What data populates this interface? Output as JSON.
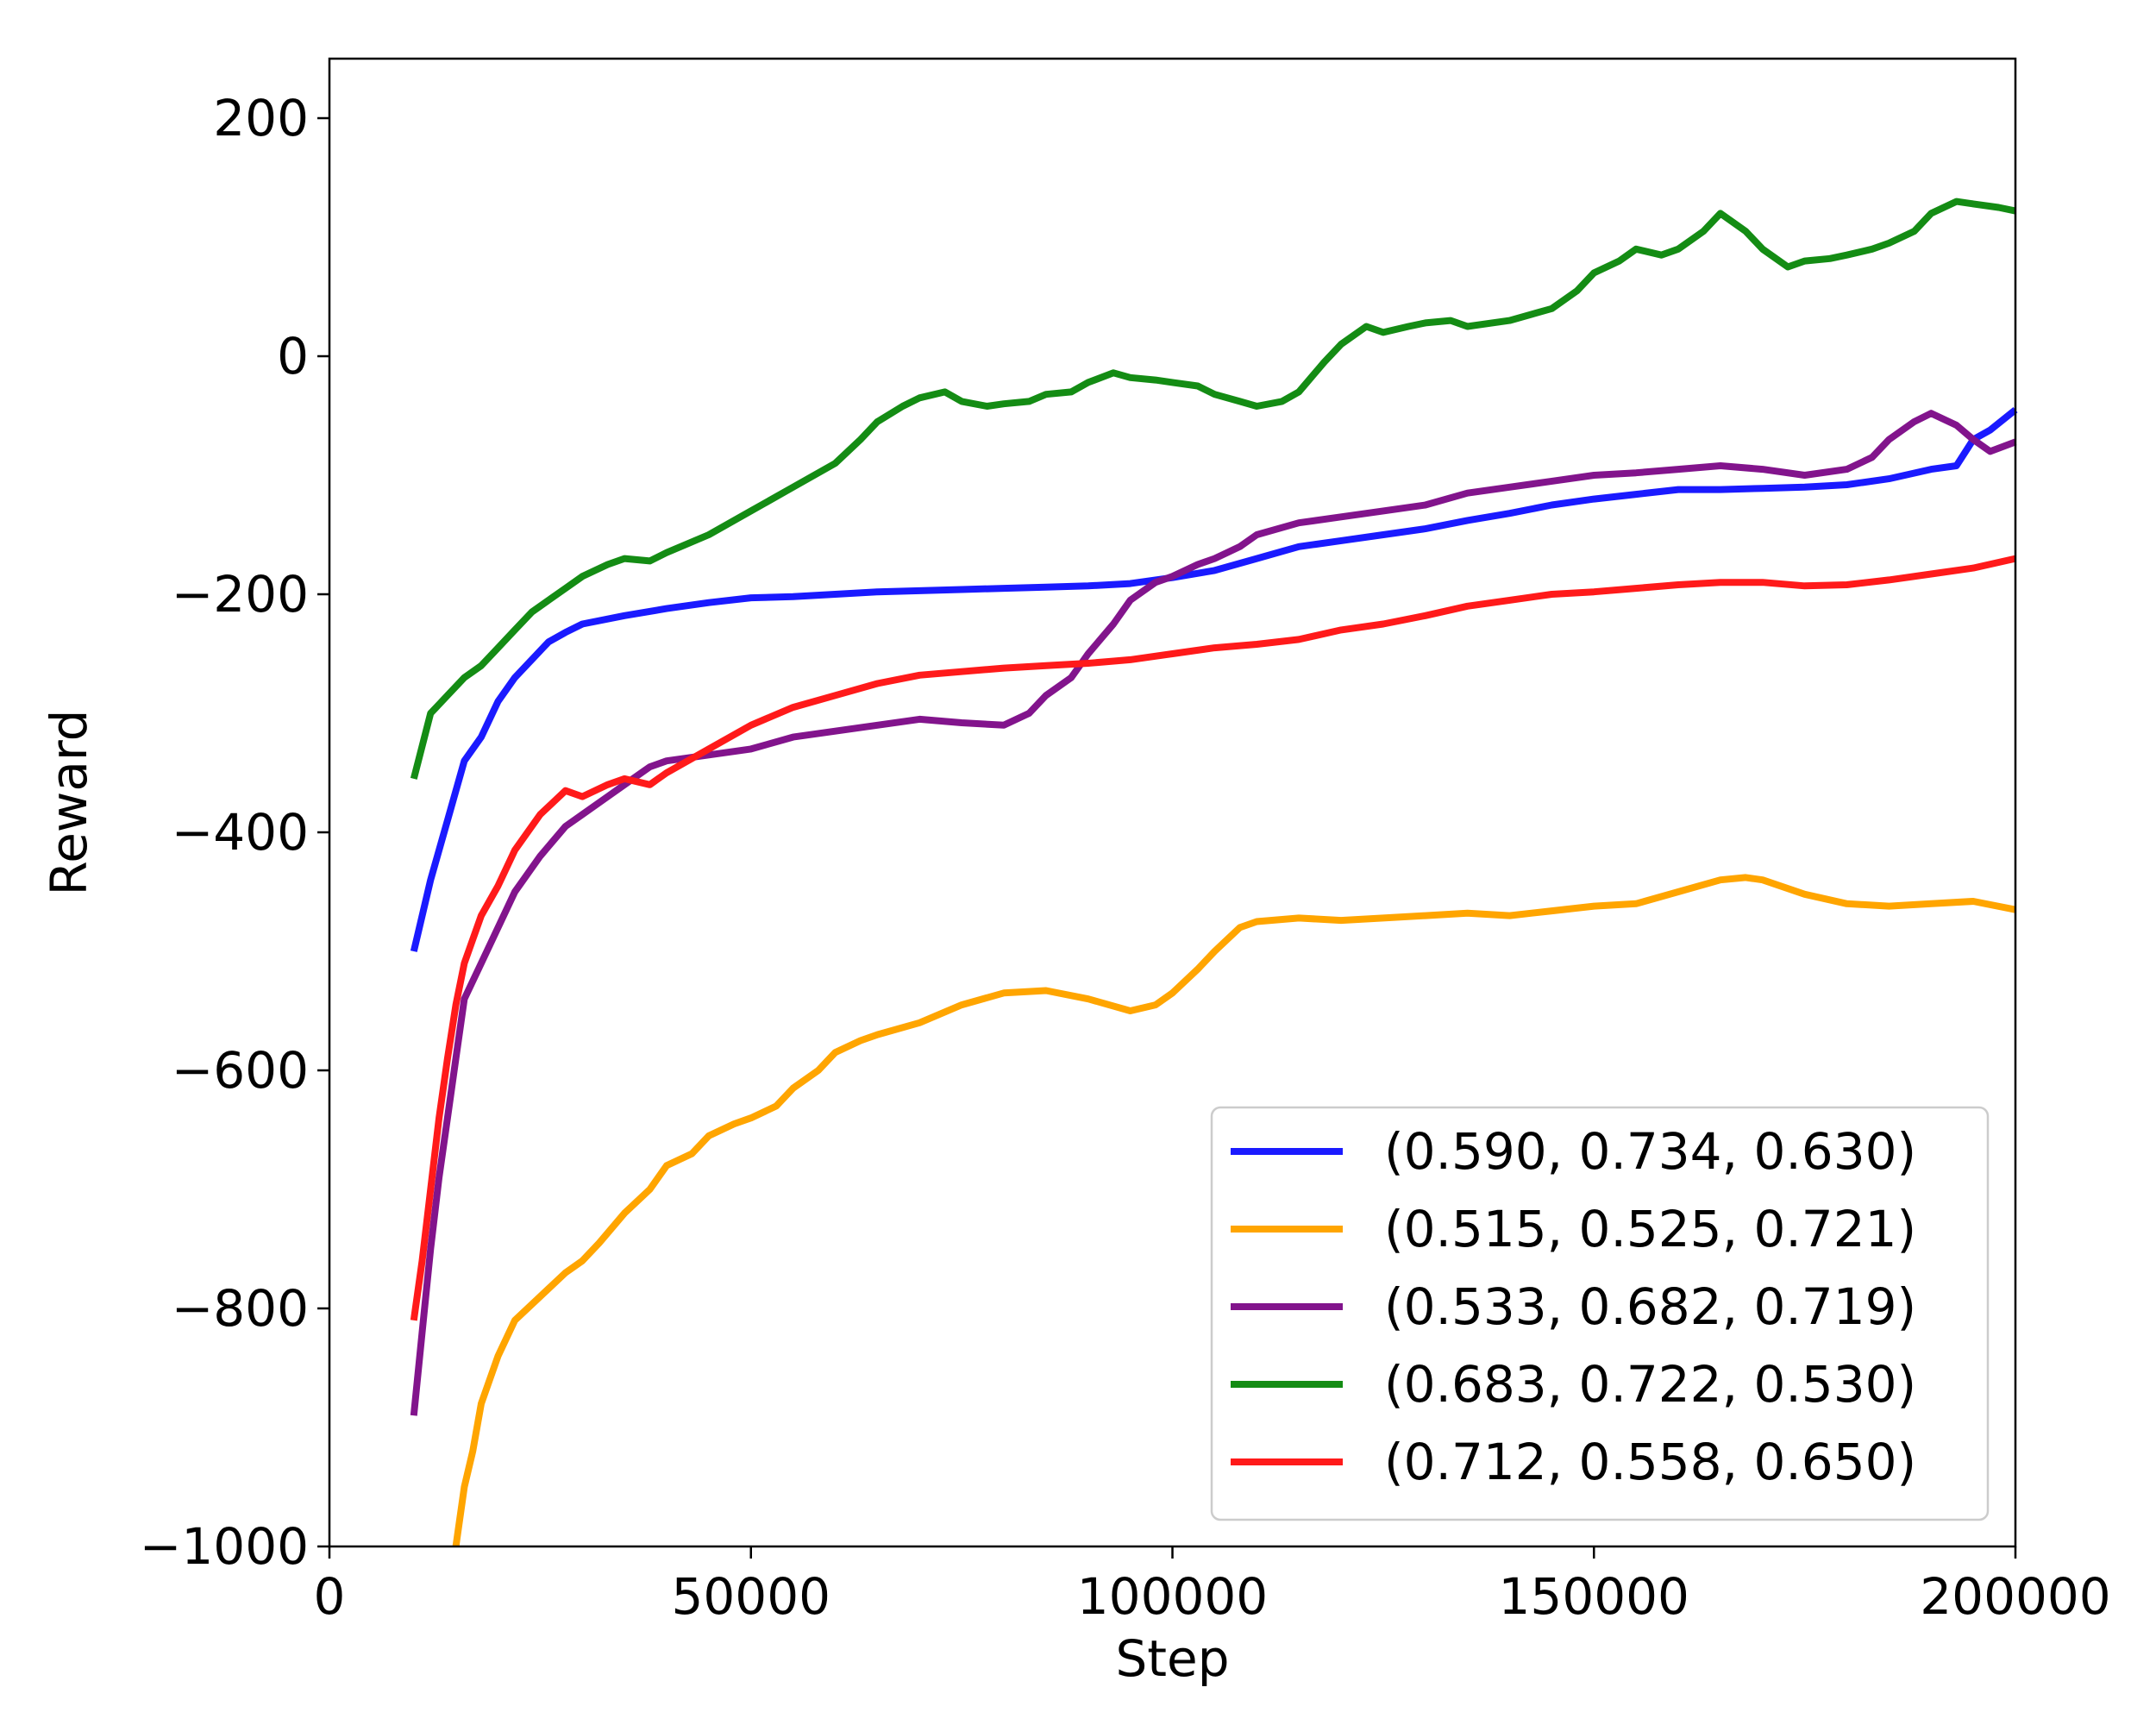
{
  "chart_data": {
    "type": "line",
    "xlabel": "Step",
    "ylabel": "Reward",
    "xlim": [
      0,
      200000
    ],
    "ylim": [
      -1000,
      250
    ],
    "xticks": [
      0,
      50000,
      100000,
      150000,
      200000
    ],
    "xtick_labels": [
      "0",
      "50000",
      "100000",
      "150000",
      "200000"
    ],
    "yticks": [
      -1000,
      -800,
      -600,
      -400,
      -200,
      0,
      200
    ],
    "ytick_labels": [
      "−1000",
      "−800",
      "−600",
      "−400",
      "−200",
      "0",
      "200"
    ],
    "grid": false,
    "legend_position": "lower-right",
    "series": [
      {
        "name": "(0.590, 0.734, 0.630)",
        "color": "#1a1aff",
        "x": [
          10000,
          12000,
          14000,
          16000,
          18000,
          20000,
          22000,
          24000,
          26000,
          28000,
          30000,
          35000,
          40000,
          45000,
          50000,
          55000,
          60000,
          65000,
          70000,
          75000,
          80000,
          85000,
          90000,
          95000,
          100000,
          105000,
          110000,
          115000,
          120000,
          125000,
          130000,
          135000,
          140000,
          145000,
          150000,
          155000,
          160000,
          165000,
          170000,
          175000,
          180000,
          185000,
          190000,
          193000,
          195000,
          197000,
          200000
        ],
        "y": [
          -500,
          -440,
          -390,
          -340,
          -320,
          -290,
          -270,
          -255,
          -240,
          -232,
          -225,
          -218,
          -212,
          -207,
          -203,
          -202,
          -200,
          -198,
          -197,
          -196,
          -195,
          -194,
          -193,
          -191,
          -186,
          -180,
          -170,
          -160,
          -155,
          -150,
          -145,
          -138,
          -132,
          -125,
          -120,
          -116,
          -112,
          -112,
          -111,
          -110,
          -108,
          -103,
          -95,
          -92,
          -70,
          -62,
          -45
        ]
      },
      {
        "name": "(0.515, 0.525, 0.721)",
        "color": "#ffa500",
        "x": [
          15000,
          16000,
          17000,
          18000,
          20000,
          22000,
          25000,
          28000,
          30000,
          32000,
          35000,
          38000,
          40000,
          43000,
          45000,
          48000,
          50000,
          53000,
          55000,
          58000,
          60000,
          63000,
          65000,
          70000,
          75000,
          80000,
          85000,
          90000,
          95000,
          98000,
          100000,
          103000,
          105000,
          108000,
          110000,
          115000,
          120000,
          125000,
          130000,
          135000,
          140000,
          145000,
          150000,
          155000,
          160000,
          165000,
          168000,
          170000,
          175000,
          180000,
          185000,
          190000,
          195000,
          200000
        ],
        "y": [
          -1000,
          -950,
          -920,
          -880,
          -840,
          -810,
          -790,
          -770,
          -760,
          -745,
          -720,
          -700,
          -680,
          -670,
          -655,
          -645,
          -640,
          -630,
          -615,
          -600,
          -585,
          -575,
          -570,
          -560,
          -545,
          -535,
          -533,
          -540,
          -550,
          -545,
          -535,
          -515,
          -500,
          -480,
          -475,
          -472,
          -474,
          -472,
          -470,
          -468,
          -470,
          -466,
          -462,
          -460,
          -450,
          -440,
          -438,
          -440,
          -452,
          -460,
          -462,
          -460,
          -458,
          -465
        ]
      },
      {
        "name": "(0.533, 0.682, 0.719)",
        "color": "#82148c",
        "x": [
          10000,
          11000,
          12000,
          13000,
          14000,
          15000,
          16000,
          18000,
          20000,
          22000,
          25000,
          28000,
          30000,
          33000,
          35000,
          38000,
          40000,
          45000,
          50000,
          55000,
          60000,
          65000,
          70000,
          75000,
          80000,
          83000,
          85000,
          88000,
          90000,
          93000,
          95000,
          98000,
          100000,
          103000,
          105000,
          108000,
          110000,
          115000,
          120000,
          125000,
          130000,
          135000,
          140000,
          145000,
          150000,
          155000,
          160000,
          165000,
          170000,
          175000,
          180000,
          183000,
          185000,
          188000,
          190000,
          193000,
          195000,
          197000,
          200000
        ],
        "y": [
          -890,
          -820,
          -750,
          -690,
          -640,
          -590,
          -540,
          -510,
          -480,
          -450,
          -420,
          -395,
          -385,
          -370,
          -360,
          -345,
          -340,
          -335,
          -330,
          -320,
          -315,
          -310,
          -305,
          -308,
          -310,
          -300,
          -285,
          -270,
          -250,
          -225,
          -205,
          -190,
          -185,
          -175,
          -170,
          -160,
          -150,
          -140,
          -135,
          -130,
          -125,
          -115,
          -110,
          -105,
          -100,
          -98,
          -95,
          -92,
          -95,
          -100,
          -95,
          -85,
          -70,
          -55,
          -48,
          -58,
          -70,
          -80,
          -72
        ]
      },
      {
        "name": "(0.683, 0.722, 0.530)",
        "color": "#148c14",
        "x": [
          10000,
          12000,
          14000,
          16000,
          18000,
          20000,
          22000,
          24000,
          26000,
          28000,
          30000,
          33000,
          35000,
          38000,
          40000,
          45000,
          50000,
          55000,
          60000,
          63000,
          65000,
          68000,
          70000,
          73000,
          75000,
          78000,
          80000,
          83000,
          85000,
          88000,
          90000,
          93000,
          95000,
          98000,
          100000,
          103000,
          105000,
          108000,
          110000,
          113000,
          115000,
          118000,
          120000,
          123000,
          125000,
          128000,
          130000,
          133000,
          135000,
          140000,
          145000,
          148000,
          150000,
          153000,
          155000,
          158000,
          160000,
          163000,
          165000,
          168000,
          170000,
          173000,
          175000,
          178000,
          180000,
          183000,
          185000,
          188000,
          190000,
          193000,
          195000,
          198000,
          200000
        ],
        "y": [
          -355,
          -300,
          -285,
          -270,
          -260,
          -245,
          -230,
          -215,
          -205,
          -195,
          -185,
          -175,
          -170,
          -172,
          -165,
          -150,
          -130,
          -110,
          -90,
          -70,
          -55,
          -42,
          -35,
          -30,
          -38,
          -42,
          -40,
          -38,
          -32,
          -30,
          -22,
          -14,
          -18,
          -20,
          -22,
          -25,
          -32,
          -38,
          -42,
          -38,
          -30,
          -5,
          10,
          25,
          20,
          25,
          28,
          30,
          25,
          30,
          40,
          55,
          70,
          80,
          90,
          85,
          90,
          105,
          120,
          105,
          90,
          75,
          80,
          82,
          85,
          90,
          95,
          105,
          120,
          130,
          128,
          125,
          122
        ]
      },
      {
        "name": "(0.712, 0.558, 0.650)",
        "color": "#ff1a1a",
        "x": [
          10000,
          11000,
          12000,
          13000,
          14000,
          15000,
          16000,
          17000,
          18000,
          20000,
          22000,
          25000,
          28000,
          30000,
          33000,
          35000,
          38000,
          40000,
          45000,
          50000,
          55000,
          60000,
          65000,
          70000,
          75000,
          80000,
          85000,
          90000,
          95000,
          100000,
          105000,
          110000,
          115000,
          120000,
          125000,
          130000,
          135000,
          140000,
          145000,
          150000,
          155000,
          160000,
          165000,
          170000,
          175000,
          180000,
          185000,
          190000,
          195000,
          200000
        ],
        "y": [
          -810,
          -760,
          -700,
          -640,
          -590,
          -545,
          -510,
          -490,
          -470,
          -445,
          -415,
          -385,
          -365,
          -370,
          -360,
          -355,
          -360,
          -350,
          -330,
          -310,
          -295,
          -285,
          -275,
          -268,
          -265,
          -262,
          -260,
          -258,
          -255,
          -250,
          -245,
          -242,
          -238,
          -230,
          -225,
          -218,
          -210,
          -205,
          -200,
          -198,
          -195,
          -192,
          -190,
          -190,
          -193,
          -192,
          -188,
          -183,
          -178,
          -170
        ]
      }
    ]
  }
}
